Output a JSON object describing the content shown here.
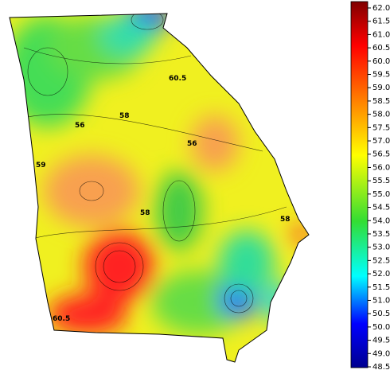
{
  "colorbar": {
    "ticks": [
      "62.0",
      "61.5",
      "61.0",
      "60.5",
      "60.0",
      "59.5",
      "59.0",
      "58.5",
      "58.0",
      "57.5",
      "57.0",
      "56.5",
      "56.0",
      "55.5",
      "55.0",
      "54.5",
      "54.0",
      "53.5",
      "53.0",
      "52.5",
      "52.0",
      "51.5",
      "51.0",
      "50.5",
      "50.0",
      "49.5",
      "49.0",
      "48.5"
    ]
  },
  "contour_labels": [
    "58",
    "60.5",
    "59",
    "56",
    "58",
    "60.5",
    "58",
    "56"
  ]
}
